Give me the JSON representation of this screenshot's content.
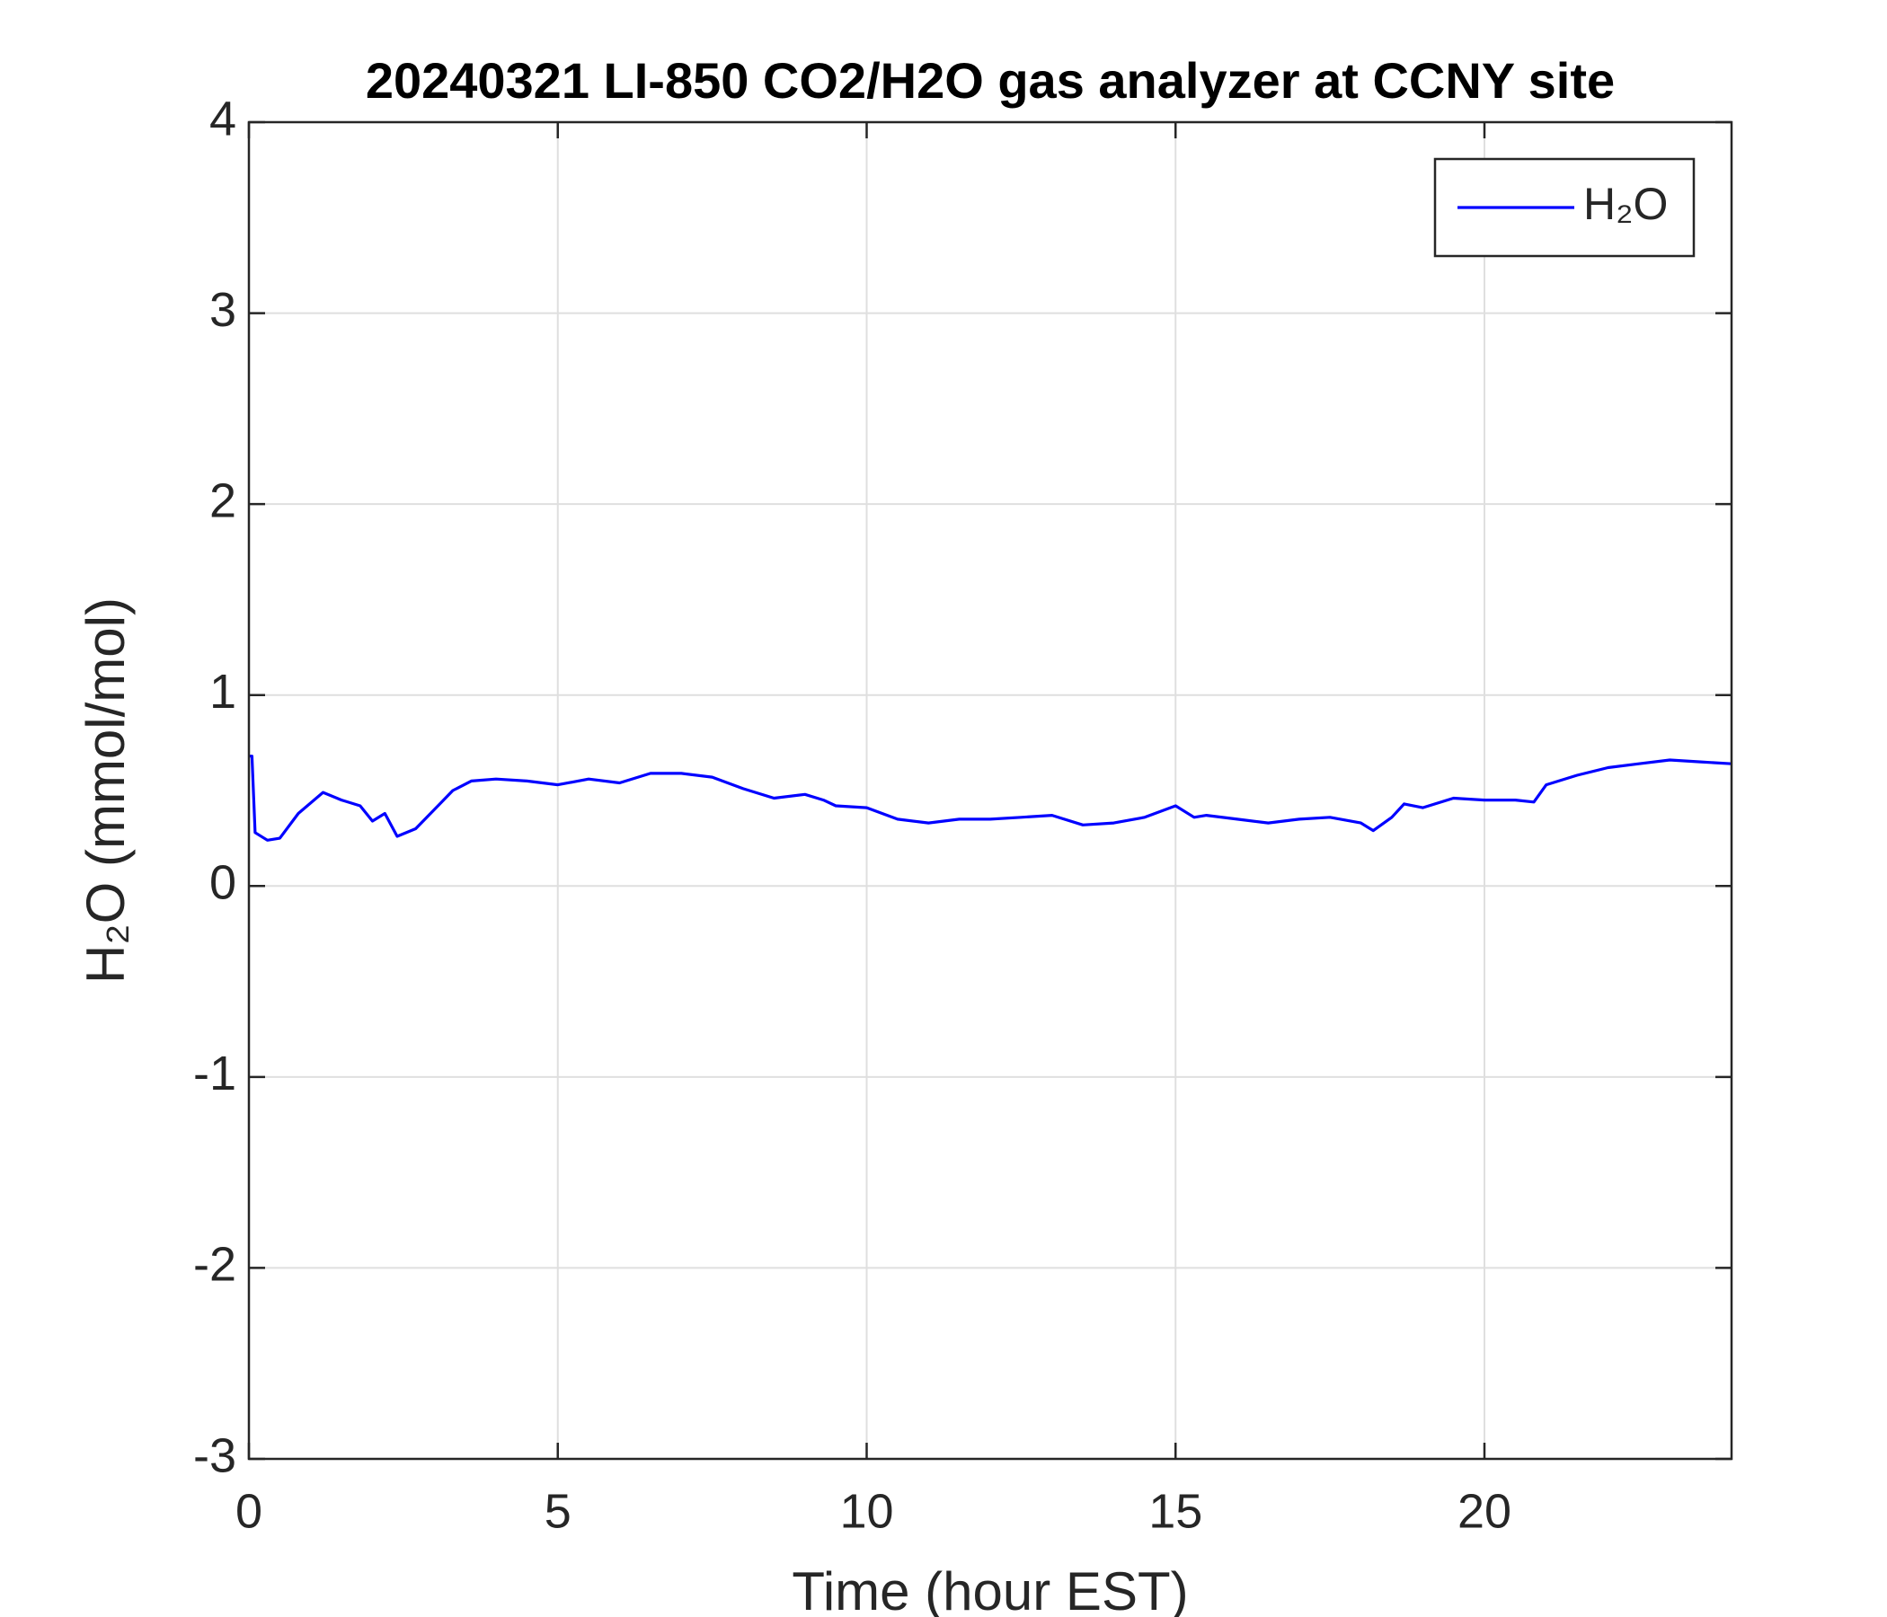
{
  "chart_data": {
    "type": "line",
    "title": "20240321 LI-850 CO2/H2O gas analyzer at CCNY site",
    "x_label": "Time (hour EST)",
    "y_label": "H₂O (mmol/mol)",
    "xlim": [
      0,
      24
    ],
    "xticks": [
      0,
      5,
      10,
      15,
      20
    ],
    "ylim": [
      -3,
      4
    ],
    "yticks": [
      -3,
      -2,
      -1,
      0,
      1,
      2,
      3,
      4
    ],
    "grid": true,
    "legend": "northeast",
    "x": [
      0,
      0.05,
      0.1,
      0.3,
      0.5,
      0.8,
      1.2,
      1.5,
      1.8,
      2.0,
      2.2,
      2.4,
      2.7,
      3.0,
      3.3,
      3.6,
      4.0,
      4.5,
      5.0,
      5.5,
      6.0,
      6.5,
      7.0,
      7.5,
      8.0,
      8.5,
      9.0,
      9.3,
      9.5,
      10.0,
      10.5,
      11.0,
      11.5,
      12.0,
      12.5,
      13.0,
      13.5,
      14.0,
      14.5,
      15.0,
      15.3,
      15.5,
      16.0,
      16.5,
      17.0,
      17.5,
      18.0,
      18.2,
      18.5,
      18.7,
      19.0,
      19.5,
      20.0,
      20.5,
      20.8,
      21.0,
      21.5,
      22.0,
      22.5,
      23.0,
      23.5,
      24.0
    ],
    "series": [
      {
        "name": "H₂O",
        "color": "#0000ff",
        "values": [
          0.68,
          0.68,
          0.28,
          0.24,
          0.25,
          0.38,
          0.49,
          0.45,
          0.42,
          0.34,
          0.38,
          0.26,
          0.3,
          0.4,
          0.5,
          0.55,
          0.56,
          0.55,
          0.53,
          0.56,
          0.54,
          0.59,
          0.59,
          0.57,
          0.51,
          0.46,
          0.48,
          0.45,
          0.42,
          0.41,
          0.35,
          0.33,
          0.35,
          0.35,
          0.36,
          0.37,
          0.32,
          0.33,
          0.36,
          0.42,
          0.36,
          0.37,
          0.35,
          0.33,
          0.35,
          0.36,
          0.33,
          0.29,
          0.36,
          0.43,
          0.41,
          0.46,
          0.45,
          0.45,
          0.44,
          0.53,
          0.58,
          0.62,
          0.64,
          0.66,
          0.65,
          0.64
        ]
      }
    ]
  }
}
